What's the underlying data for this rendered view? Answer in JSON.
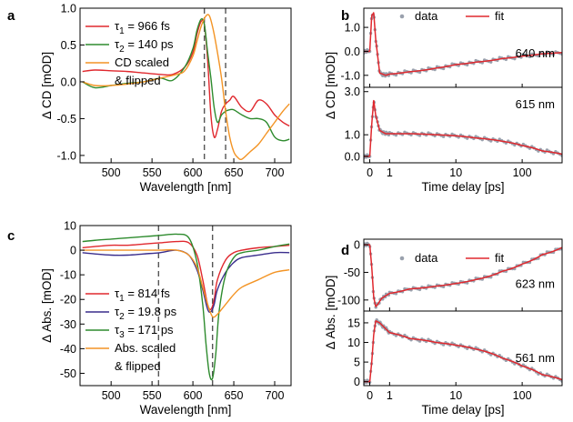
{
  "chart_data": [
    {
      "panel": "a",
      "type": "line",
      "xlabel": "Wavelength [nm]",
      "ylabel": "Δ CD [mOD]",
      "xlim": [
        462,
        720
      ],
      "ylim": [
        -1.1,
        1.0
      ],
      "xticks": [
        500,
        550,
        600,
        650,
        700
      ],
      "yticks": [
        -1.0,
        -0.5,
        0.0,
        0.5,
        1.0
      ],
      "ytick_labels": [
        "-1.0",
        "-0.5",
        "0.0",
        "0.5",
        "1.0"
      ],
      "vlines": [
        614,
        640
      ],
      "legend": [
        "τ1 = 966 fs",
        "τ2 = 140 ps",
        "CD scaled & flipped"
      ],
      "legend_lines": [
        [
          "τ",
          "1",
          " = 966 fs"
        ],
        [
          "τ",
          "2",
          " = 140 ps"
        ],
        [
          "CD scaled"
        ],
        [
          "& flipped"
        ]
      ],
      "series": [
        {
          "name": "τ1 = 966 fs",
          "color": "#e0282e",
          "x": [
            465,
            480,
            500,
            520,
            540,
            560,
            575,
            590,
            600,
            605,
            610,
            614,
            618,
            622,
            626,
            630,
            635,
            640,
            645,
            650,
            660,
            670,
            680,
            690,
            700,
            710,
            718
          ],
          "y": [
            0.14,
            0.16,
            0.15,
            0.14,
            0.12,
            0.1,
            0.1,
            0.2,
            0.4,
            0.65,
            0.82,
            0.78,
            0.3,
            -0.45,
            -0.75,
            -0.65,
            -0.4,
            -0.3,
            -0.25,
            -0.2,
            -0.35,
            -0.4,
            -0.25,
            -0.3,
            -0.45,
            -0.55,
            -0.6
          ]
        },
        {
          "name": "τ2 = 140 ps",
          "color": "#2e8b2e",
          "x": [
            465,
            480,
            500,
            520,
            540,
            560,
            575,
            590,
            600,
            605,
            610,
            614,
            618,
            622,
            626,
            630,
            635,
            640,
            645,
            650,
            660,
            670,
            680,
            690,
            700,
            710,
            718
          ],
          "y": [
            0.0,
            -0.08,
            -0.05,
            -0.02,
            0.0,
            0.05,
            0.02,
            0.2,
            0.45,
            0.7,
            0.85,
            0.78,
            0.4,
            0.05,
            -0.35,
            -0.55,
            -0.45,
            -0.4,
            -0.38,
            -0.38,
            -0.45,
            -0.5,
            -0.5,
            -0.55,
            -0.75,
            -0.8,
            -0.78
          ]
        },
        {
          "name": "CD scaled & flipped",
          "color": "#f39425",
          "x": [
            465,
            480,
            500,
            520,
            540,
            560,
            580,
            590,
            600,
            605,
            610,
            615,
            620,
            625,
            630,
            635,
            640,
            645,
            650,
            655,
            660,
            670,
            680,
            690,
            700,
            710,
            718
          ],
          "y": [
            0.0,
            -0.05,
            -0.05,
            -0.03,
            0.0,
            0.05,
            0.1,
            0.15,
            0.35,
            0.55,
            0.75,
            0.88,
            0.9,
            0.7,
            0.4,
            0.05,
            -0.4,
            -0.75,
            -0.95,
            -1.03,
            -1.05,
            -0.95,
            -0.85,
            -0.7,
            -0.55,
            -0.4,
            -0.3
          ]
        }
      ]
    },
    {
      "panel": "b",
      "type": "line",
      "xlabel": "Time delay [ps]",
      "ylabel": "Δ CD [mOD]",
      "xscale": "linear-log (break at 1 ps)",
      "xticks": [
        0,
        1,
        10,
        100
      ],
      "legend": [
        "data",
        "fit"
      ],
      "subplots": [
        {
          "label": "640 nm",
          "ylim": [
            -1.5,
            1.8
          ],
          "yticks": [
            -1.0,
            0.0,
            1.0
          ],
          "ytick_labels": [
            "-1.0",
            "0.0",
            "1.0"
          ],
          "data_color": "#9aa1ad",
          "fit_color": "#e0282e",
          "x": [
            -0.3,
            0,
            0.1,
            0.2,
            0.3,
            0.5,
            0.8,
            1,
            2,
            5,
            10,
            20,
            50,
            100,
            200,
            400
          ],
          "y": [
            0,
            0,
            1.5,
            1.6,
            0.5,
            -0.9,
            -1.0,
            -0.95,
            -0.85,
            -0.7,
            -0.55,
            -0.45,
            -0.3,
            -0.2,
            -0.1,
            -0.05
          ]
        },
        {
          "label": "615 nm",
          "ylim": [
            -0.3,
            3.2
          ],
          "yticks": [
            0.0,
            1.0,
            3.0
          ],
          "ytick_labels": [
            "0.0",
            "1.0",
            "3.0"
          ],
          "data_color": "#9aa1ad",
          "fit_color": "#e0282e",
          "x": [
            -0.3,
            0,
            0.1,
            0.2,
            0.3,
            0.5,
            0.8,
            1,
            2,
            5,
            10,
            20,
            50,
            100,
            200,
            400
          ],
          "y": [
            0,
            0,
            1.5,
            2.6,
            1.9,
            1.2,
            1.05,
            1.05,
            1.05,
            1.0,
            0.95,
            0.85,
            0.7,
            0.5,
            0.25,
            0.1
          ]
        }
      ]
    },
    {
      "panel": "c",
      "type": "line",
      "xlabel": "Wavelength [nm]",
      "ylabel": "Δ Abs. [mOD]",
      "xlim": [
        462,
        720
      ],
      "ylim": [
        -55,
        10
      ],
      "xticks": [
        500,
        550,
        600,
        650,
        700
      ],
      "yticks": [
        -50,
        -40,
        -30,
        -20,
        -10,
        0,
        10
      ],
      "ytick_labels": [
        "-50",
        "-40",
        "-30",
        "-20",
        "-10",
        "0",
        "10"
      ],
      "vlines": [
        558,
        624
      ],
      "legend": [
        "τ1 = 814 fs",
        "τ2 = 19.8 ps",
        "τ3 = 171 ps",
        "Abs. scaled & flipped"
      ],
      "legend_lines": [
        [
          "τ",
          "1",
          " = 814 fs"
        ],
        [
          "τ",
          "2",
          " = 19.8 ps"
        ],
        [
          "τ",
          "3",
          " = 171 ps"
        ],
        [
          "Abs. scaled"
        ],
        [
          "& flipped"
        ]
      ],
      "series": [
        {
          "name": "τ1 = 814 fs",
          "color": "#e0282e",
          "x": [
            465,
            480,
            500,
            520,
            540,
            560,
            580,
            595,
            605,
            612,
            618,
            622,
            626,
            630,
            640,
            650,
            660,
            680,
            700,
            718
          ],
          "y": [
            1,
            1.5,
            2,
            2,
            2.5,
            3,
            3.5,
            3,
            -2,
            -12,
            -22,
            -24,
            -20,
            -12,
            -4,
            -1,
            0,
            1,
            1.5,
            2
          ]
        },
        {
          "name": "τ2 = 19.8 ps",
          "color": "#3a2d8c",
          "x": [
            465,
            480,
            500,
            520,
            540,
            560,
            580,
            595,
            605,
            612,
            618,
            622,
            626,
            630,
            640,
            650,
            660,
            680,
            700,
            718
          ],
          "y": [
            -1,
            -1.5,
            -2,
            -2,
            -1.5,
            -1,
            0,
            -2,
            -8,
            -16,
            -24,
            -25,
            -22,
            -16,
            -9,
            -5,
            -3,
            -2,
            -1,
            -1
          ]
        },
        {
          "name": "τ3 = 171 ps",
          "color": "#2e8b2e",
          "x": [
            465,
            480,
            500,
            520,
            540,
            560,
            580,
            595,
            605,
            612,
            616,
            620,
            624,
            628,
            632,
            640,
            650,
            660,
            680,
            700,
            718
          ],
          "y": [
            3.5,
            4,
            4.5,
            5,
            5.5,
            6,
            6.5,
            5,
            -5,
            -22,
            -38,
            -50,
            -52,
            -42,
            -25,
            -10,
            -3,
            -1,
            0,
            1.5,
            2.5
          ]
        },
        {
          "name": "Abs. scaled & flipped",
          "color": "#f39425",
          "x": [
            465,
            480,
            500,
            520,
            540,
            560,
            580,
            595,
            605,
            612,
            618,
            624,
            630,
            640,
            650,
            660,
            680,
            700,
            718
          ],
          "y": [
            0,
            0,
            0,
            0,
            0,
            0,
            0,
            -2,
            -7,
            -15,
            -22,
            -27,
            -26,
            -22,
            -18,
            -15,
            -12,
            -9,
            -8
          ]
        }
      ]
    },
    {
      "panel": "d",
      "type": "line",
      "xlabel": "Time delay [ps]",
      "ylabel": "Δ Abs. [mOD]",
      "xscale": "linear-log (break at 1 ps)",
      "xticks": [
        0,
        1,
        10,
        100
      ],
      "legend": [
        "data",
        "fit"
      ],
      "subplots": [
        {
          "label": "623 nm",
          "ylim": [
            -120,
            10
          ],
          "yticks": [
            -100,
            -50,
            0
          ],
          "ytick_labels": [
            "-100",
            "-50",
            "0"
          ],
          "data_color": "#9aa1ad",
          "fit_color": "#e0282e",
          "x": [
            -0.3,
            0,
            0.1,
            0.2,
            0.3,
            0.4,
            0.6,
            1,
            2,
            5,
            10,
            20,
            50,
            100,
            200,
            400
          ],
          "y": [
            0,
            0,
            -40,
            -95,
            -112,
            -108,
            -97,
            -88,
            -80,
            -75,
            -70,
            -63,
            -48,
            -35,
            -18,
            -5
          ]
        },
        {
          "label": "561 nm",
          "ylim": [
            -1,
            18
          ],
          "yticks": [
            0,
            5,
            10,
            15
          ],
          "ytick_labels": [
            "0",
            "5",
            "10",
            "15"
          ],
          "data_color": "#9aa1ad",
          "fit_color": "#e0282e",
          "x": [
            -0.3,
            0,
            0.1,
            0.2,
            0.3,
            0.5,
            0.8,
            1,
            2,
            5,
            10,
            20,
            50,
            100,
            200,
            400
          ],
          "y": [
            0,
            0,
            5,
            12,
            15.5,
            15,
            13.5,
            12.5,
            11,
            10,
            9.3,
            8.3,
            6,
            4,
            1.8,
            0.5
          ]
        }
      ]
    }
  ]
}
